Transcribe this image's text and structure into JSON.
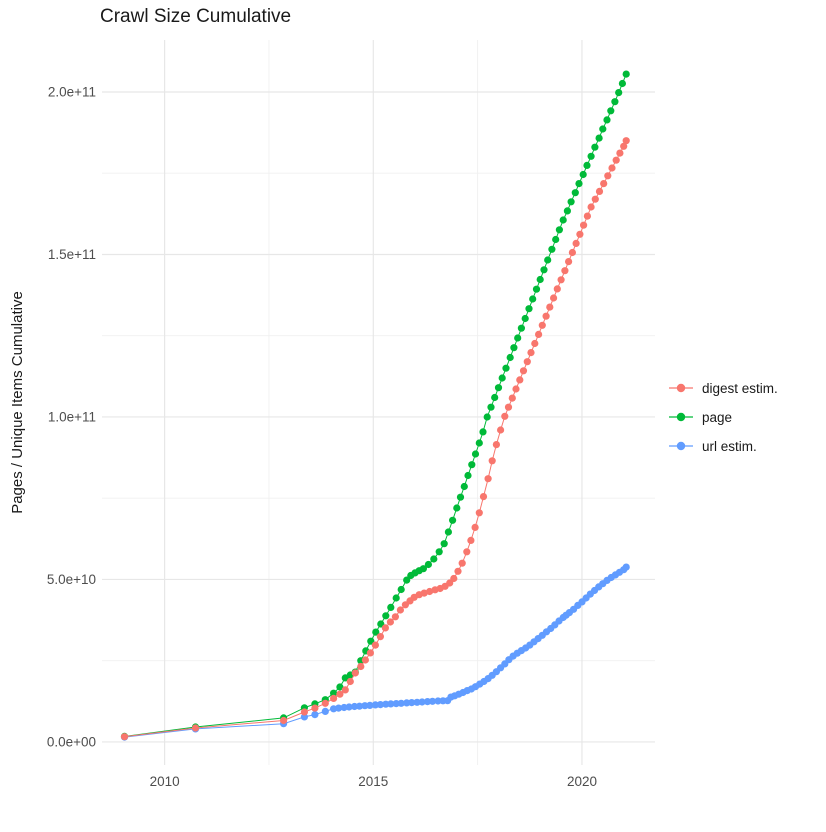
{
  "header": {
    "title": "Crawl Size Cumulative"
  },
  "axes": {
    "y_title": "Pages / Unique Items Cumulative",
    "x_tick_labels": [
      "2010",
      "2015",
      "2020"
    ],
    "y_tick_labels": [
      "0.0e+00",
      "5.0e+10",
      "1.0e+11",
      "1.5e+11",
      "2.0e+11"
    ]
  },
  "legend": {
    "entries": [
      {
        "label": "digest estim.",
        "color": "#F8766D"
      },
      {
        "label": "page",
        "color": "#00BA38"
      },
      {
        "label": "url estim.",
        "color": "#619CFF"
      }
    ]
  },
  "style": {
    "grid_major_color": "#E7E7E7",
    "grid_minor_color": "#F0F0F0",
    "tick_label_color": "#4D4D4D",
    "text_color": "#1a1a1a",
    "background": "#FFFFFF"
  },
  "chart_data": {
    "type": "scatter",
    "title": "Crawl Size Cumulative",
    "xlabel": "",
    "ylabel": "Pages / Unique Items Cumulative",
    "values_unit": "1e9 (billions of pages / unique items)",
    "xlim": [
      2008.5,
      2021.75
    ],
    "ylim": [
      -7.1,
      216
    ],
    "x_major_ticks": [
      2010,
      2015,
      2020
    ],
    "x_minor_ticks": [
      2012.5,
      2017.5
    ],
    "y_major_ticks": [
      0,
      50,
      100,
      150,
      200
    ],
    "y_minor_ticks": [
      25,
      75,
      125,
      175
    ],
    "grid": true,
    "legend_position": "right",
    "series": [
      {
        "name": "page",
        "color": "#00BA38",
        "points": [
          [
            2009.04,
            1.7
          ],
          [
            2010.74,
            4.6
          ],
          [
            2012.85,
            7.4
          ],
          [
            2013.35,
            10.5
          ],
          [
            2013.6,
            11.7
          ],
          [
            2013.85,
            13
          ],
          [
            2014.05,
            15
          ],
          [
            2014.2,
            16.9
          ],
          [
            2014.33,
            19.7
          ],
          [
            2014.45,
            20.6
          ],
          [
            2014.57,
            21.5
          ],
          [
            2014.7,
            25
          ],
          [
            2014.82,
            28
          ],
          [
            2014.94,
            31
          ],
          [
            2015.06,
            33.8
          ],
          [
            2015.18,
            36.3
          ],
          [
            2015.3,
            38.8
          ],
          [
            2015.42,
            41.4
          ],
          [
            2015.55,
            44.3
          ],
          [
            2015.67,
            46.9
          ],
          [
            2015.8,
            49.8
          ],
          [
            2015.9,
            51.2
          ],
          [
            2016,
            52
          ],
          [
            2016.1,
            52.7
          ],
          [
            2016.2,
            53.3
          ],
          [
            2016.32,
            54.6
          ],
          [
            2016.45,
            56.3
          ],
          [
            2016.58,
            58.5
          ],
          [
            2016.7,
            61
          ],
          [
            2016.8,
            64.6
          ],
          [
            2016.9,
            68.2
          ],
          [
            2017,
            72
          ],
          [
            2017.09,
            75.3
          ],
          [
            2017.18,
            78.6
          ],
          [
            2017.27,
            82
          ],
          [
            2017.36,
            85.3
          ],
          [
            2017.45,
            88.6
          ],
          [
            2017.54,
            92
          ],
          [
            2017.63,
            95.4
          ],
          [
            2017.73,
            100
          ],
          [
            2017.82,
            103
          ],
          [
            2017.91,
            106
          ],
          [
            2018,
            109
          ],
          [
            2018.09,
            112
          ],
          [
            2018.18,
            115
          ],
          [
            2018.28,
            118.3
          ],
          [
            2018.37,
            121.3
          ],
          [
            2018.46,
            124.3
          ],
          [
            2018.55,
            127.3
          ],
          [
            2018.64,
            130.3
          ],
          [
            2018.73,
            133.3
          ],
          [
            2018.82,
            136.3
          ],
          [
            2018.91,
            139.3
          ],
          [
            2019,
            142.3
          ],
          [
            2019.09,
            145.3
          ],
          [
            2019.18,
            148.3
          ],
          [
            2019.28,
            151.6
          ],
          [
            2019.37,
            154.6
          ],
          [
            2019.46,
            157.6
          ],
          [
            2019.55,
            160.6
          ],
          [
            2019.65,
            163.4
          ],
          [
            2019.74,
            166.2
          ],
          [
            2019.84,
            169
          ],
          [
            2019.93,
            171.8
          ],
          [
            2020.03,
            174.6
          ],
          [
            2020.12,
            177.4
          ],
          [
            2020.22,
            180.2
          ],
          [
            2020.31,
            183
          ],
          [
            2020.41,
            185.8
          ],
          [
            2020.5,
            188.6
          ],
          [
            2020.6,
            191.4
          ],
          [
            2020.69,
            194.2
          ],
          [
            2020.79,
            197
          ],
          [
            2020.88,
            199.8
          ],
          [
            2020.97,
            202.6
          ],
          [
            2021.06,
            205.5
          ]
        ]
      },
      {
        "name": "url estim.",
        "color": "#619CFF",
        "points": [
          [
            2009.04,
            1.5
          ],
          [
            2010.74,
            4
          ],
          [
            2012.85,
            5.6
          ],
          [
            2013.35,
            7.7
          ],
          [
            2013.6,
            8.4
          ],
          [
            2013.85,
            9.4
          ],
          [
            2014.05,
            10.2
          ],
          [
            2014.17,
            10.4
          ],
          [
            2014.3,
            10.6
          ],
          [
            2014.42,
            10.75
          ],
          [
            2014.55,
            10.9
          ],
          [
            2014.67,
            11
          ],
          [
            2014.8,
            11.15
          ],
          [
            2014.92,
            11.25
          ],
          [
            2015.05,
            11.4
          ],
          [
            2015.17,
            11.5
          ],
          [
            2015.3,
            11.6
          ],
          [
            2015.42,
            11.7
          ],
          [
            2015.55,
            11.8
          ],
          [
            2015.67,
            11.9
          ],
          [
            2015.8,
            12
          ],
          [
            2015.92,
            12.1
          ],
          [
            2016.05,
            12.2
          ],
          [
            2016.17,
            12.3
          ],
          [
            2016.3,
            12.4
          ],
          [
            2016.42,
            12.5
          ],
          [
            2016.55,
            12.6
          ],
          [
            2016.67,
            12.65
          ],
          [
            2016.78,
            12.7
          ],
          [
            2016.86,
            13.8
          ],
          [
            2016.95,
            14.2
          ],
          [
            2017.05,
            14.7
          ],
          [
            2017.15,
            15.2
          ],
          [
            2017.25,
            15.8
          ],
          [
            2017.35,
            16.3
          ],
          [
            2017.45,
            17
          ],
          [
            2017.55,
            17.8
          ],
          [
            2017.65,
            18.6
          ],
          [
            2017.75,
            19.5
          ],
          [
            2017.85,
            20.5
          ],
          [
            2017.95,
            21.6
          ],
          [
            2018.05,
            22.8
          ],
          [
            2018.15,
            24
          ],
          [
            2018.25,
            25.3
          ],
          [
            2018.35,
            26.4
          ],
          [
            2018.45,
            27.3
          ],
          [
            2018.55,
            28.1
          ],
          [
            2018.65,
            28.9
          ],
          [
            2018.75,
            29.8
          ],
          [
            2018.85,
            30.8
          ],
          [
            2018.95,
            31.8
          ],
          [
            2019.05,
            32.8
          ],
          [
            2019.15,
            33.9
          ],
          [
            2019.25,
            34.9
          ],
          [
            2019.35,
            36
          ],
          [
            2019.45,
            37.2
          ],
          [
            2019.55,
            38.3
          ],
          [
            2019.62,
            39
          ],
          [
            2019.7,
            39.8
          ],
          [
            2019.8,
            40.8
          ],
          [
            2019.9,
            42
          ],
          [
            2020,
            43.1
          ],
          [
            2020.1,
            44.3
          ],
          [
            2020.2,
            45.5
          ],
          [
            2020.3,
            46.6
          ],
          [
            2020.4,
            47.7
          ],
          [
            2020.5,
            48.7
          ],
          [
            2020.6,
            49.7
          ],
          [
            2020.7,
            50.6
          ],
          [
            2020.8,
            51.4
          ],
          [
            2020.9,
            52.2
          ],
          [
            2021,
            53
          ],
          [
            2021.06,
            53.8
          ]
        ]
      },
      {
        "name": "digest estim.",
        "color": "#F8766D",
        "points": [
          [
            2009.04,
            1.6
          ],
          [
            2010.74,
            4.3
          ],
          [
            2012.85,
            6.6
          ],
          [
            2013.35,
            9.2
          ],
          [
            2013.6,
            10.4
          ],
          [
            2013.85,
            11.9
          ],
          [
            2014.05,
            13.4
          ],
          [
            2014.2,
            14.7
          ],
          [
            2014.33,
            16
          ],
          [
            2014.45,
            18.6
          ],
          [
            2014.57,
            21.2
          ],
          [
            2014.7,
            23.2
          ],
          [
            2014.81,
            25.2
          ],
          [
            2014.93,
            27.4
          ],
          [
            2015.05,
            29.8
          ],
          [
            2015.17,
            32.4
          ],
          [
            2015.29,
            35.1
          ],
          [
            2015.41,
            36.9
          ],
          [
            2015.53,
            38.5
          ],
          [
            2015.65,
            40.6
          ],
          [
            2015.77,
            42.2
          ],
          [
            2015.88,
            43.4
          ],
          [
            2015.98,
            44.5
          ],
          [
            2016.1,
            45.3
          ],
          [
            2016.22,
            45.8
          ],
          [
            2016.35,
            46.3
          ],
          [
            2016.48,
            46.8
          ],
          [
            2016.6,
            47.2
          ],
          [
            2016.72,
            47.9
          ],
          [
            2016.83,
            48.9
          ],
          [
            2016.93,
            50.3
          ],
          [
            2017.03,
            52.5
          ],
          [
            2017.13,
            55
          ],
          [
            2017.24,
            58.5
          ],
          [
            2017.34,
            62
          ],
          [
            2017.44,
            66
          ],
          [
            2017.54,
            70.5
          ],
          [
            2017.64,
            75.5
          ],
          [
            2017.75,
            81
          ],
          [
            2017.85,
            86.5
          ],
          [
            2017.95,
            91.5
          ],
          [
            2018.05,
            96
          ],
          [
            2018.15,
            100.2
          ],
          [
            2018.24,
            103
          ],
          [
            2018.33,
            105.8
          ],
          [
            2018.42,
            108.6
          ],
          [
            2018.51,
            111.4
          ],
          [
            2018.6,
            114.2
          ],
          [
            2018.69,
            117
          ],
          [
            2018.78,
            119.8
          ],
          [
            2018.87,
            122.6
          ],
          [
            2018.96,
            125.4
          ],
          [
            2019.05,
            128.2
          ],
          [
            2019.14,
            131
          ],
          [
            2019.23,
            133.8
          ],
          [
            2019.32,
            136.6
          ],
          [
            2019.41,
            139.4
          ],
          [
            2019.5,
            142.2
          ],
          [
            2019.59,
            145
          ],
          [
            2019.68,
            147.8
          ],
          [
            2019.77,
            150.6
          ],
          [
            2019.86,
            153.4
          ],
          [
            2019.95,
            156.2
          ],
          [
            2020.04,
            159
          ],
          [
            2020.13,
            161.8
          ],
          [
            2020.22,
            164.6
          ],
          [
            2020.32,
            167
          ],
          [
            2020.42,
            169.4
          ],
          [
            2020.52,
            171.8
          ],
          [
            2020.62,
            174.2
          ],
          [
            2020.72,
            176.6
          ],
          [
            2020.82,
            179
          ],
          [
            2020.91,
            181.2
          ],
          [
            2021,
            183.3
          ],
          [
            2021.06,
            185
          ]
        ]
      }
    ]
  }
}
